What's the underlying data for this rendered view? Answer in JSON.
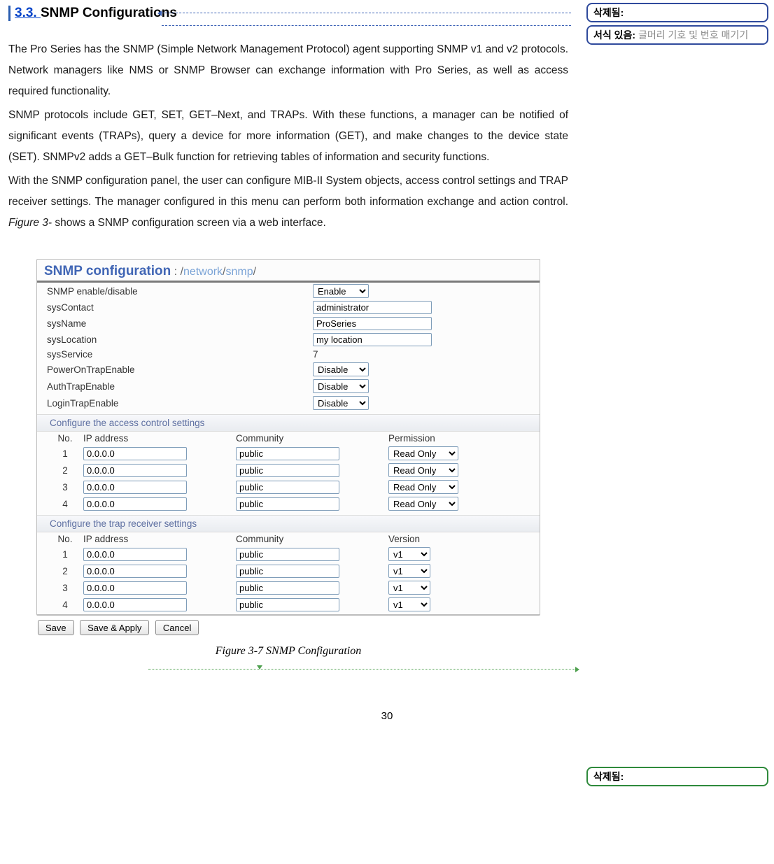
{
  "heading": {
    "link": "3.3. ",
    "rest": "SNMP Configurations"
  },
  "para1": "The Pro Series has the SNMP (Simple Network Management Protocol) agent supporting SNMP v1 and v2 protocols. Network managers like NMS or SNMP Browser can exchange information with Pro Series, as well as access required functionality.",
  "para2": "SNMP protocols include GET, SET, GET–Next, and TRAPs. With these functions, a manager can be notified of significant events (TRAPs), query a device for more information (GET), and make changes to the device state (SET). SNMPv2 adds a GET–Bulk function for retrieving tables of information and security functions.",
  "para3a": "With the SNMP configuration panel, the user can configure MIB-II System objects, access control settings and TRAP receiver settings. The manager configured in this menu can perform both information exchange and action control. ",
  "para3_fig": "Figure 3-",
  "para3b": " shows a SNMP configuration screen via a web interface.",
  "panel": {
    "title": "SNMP configuration",
    "pathPrefix": " : /",
    "pathSeg1": "network",
    "pathMid": "/",
    "pathSeg2": "snmp",
    "pathSuffix": "/",
    "rows": {
      "snmp_enable": {
        "label": "SNMP enable/disable",
        "value": "Enable"
      },
      "sysContact": {
        "label": "sysContact",
        "value": "administrator"
      },
      "sysName": {
        "label": "sysName",
        "value": "ProSeries"
      },
      "sysLocation": {
        "label": "sysLocation",
        "value": "my location"
      },
      "sysService": {
        "label": "sysService",
        "value": "7"
      },
      "powerOn": {
        "label": "PowerOnTrapEnable",
        "value": "Disable"
      },
      "authTrap": {
        "label": "AuthTrapEnable",
        "value": "Disable"
      },
      "loginTrap": {
        "label": "LoginTrapEnable",
        "value": "Disable"
      }
    },
    "access_title": "Configure the access control settings",
    "access_headers": {
      "no": "No.",
      "ip": "IP address",
      "comm": "Community",
      "perm": "Permission"
    },
    "access_rows": [
      {
        "no": "1",
        "ip": "0.0.0.0",
        "comm": "public",
        "perm": "Read Only"
      },
      {
        "no": "2",
        "ip": "0.0.0.0",
        "comm": "public",
        "perm": "Read Only"
      },
      {
        "no": "3",
        "ip": "0.0.0.0",
        "comm": "public",
        "perm": "Read Only"
      },
      {
        "no": "4",
        "ip": "0.0.0.0",
        "comm": "public",
        "perm": "Read Only"
      }
    ],
    "trap_title": "Configure the trap receiver settings",
    "trap_headers": {
      "no": "No.",
      "ip": "IP address",
      "comm": "Community",
      "ver": "Version"
    },
    "trap_rows": [
      {
        "no": "1",
        "ip": "0.0.0.0",
        "comm": "public",
        "ver": "v1"
      },
      {
        "no": "2",
        "ip": "0.0.0.0",
        "comm": "public",
        "ver": "v1"
      },
      {
        "no": "3",
        "ip": "0.0.0.0",
        "comm": "public",
        "ver": "v1"
      },
      {
        "no": "4",
        "ip": "0.0.0.0",
        "comm": "public",
        "ver": "v1"
      }
    ],
    "buttons": {
      "save": "Save",
      "save_apply": "Save & Apply",
      "cancel": "Cancel"
    }
  },
  "figure_caption": "Figure 3-7 SNMP Configuration",
  "comments": {
    "top1_label": "삭제됨:",
    "top1_body": " ",
    "top2_label": "서식 있음:",
    "top2_body": " 글머리 기호 및 번호 매기기",
    "bottom_label": "삭제됨:",
    "bottom_body": " "
  },
  "pagenum": "30"
}
